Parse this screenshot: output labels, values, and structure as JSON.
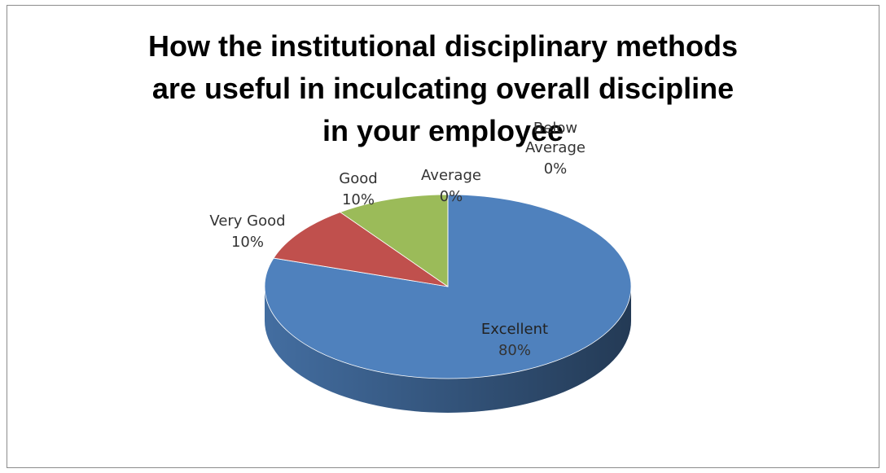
{
  "chart_data": {
    "type": "pie",
    "title": [
      "How the institutional disciplinary methods",
      "are useful in inculcating overall discipline",
      "in your employee"
    ],
    "categories": [
      "Excellent",
      "Very Good",
      "Good",
      "Average",
      "Below Average"
    ],
    "values": [
      80,
      10,
      10,
      0,
      0
    ],
    "value_labels": [
      "80%",
      "10%",
      "10%",
      "0%",
      "0%"
    ],
    "colors": [
      "#4f81bd",
      "#c0504d",
      "#9bbb59",
      "#8064a2",
      "#4bacc6"
    ]
  }
}
